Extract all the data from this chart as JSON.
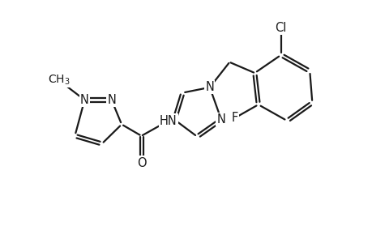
{
  "bg_color": "#ffffff",
  "line_color": "#1a1a1a",
  "line_width": 1.6,
  "font_size": 10.5,
  "fig_width": 4.6,
  "fig_height": 3.0,
  "dpi": 100,
  "xlim": [
    -0.5,
    9.8
  ],
  "ylim": [
    0.5,
    6.5
  ]
}
